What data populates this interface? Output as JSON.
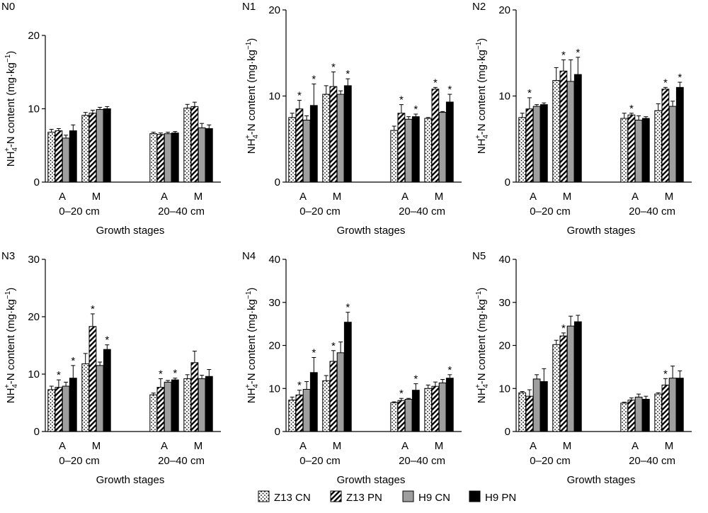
{
  "legend": [
    {
      "label": "Z13 CN",
      "pattern": "dots"
    },
    {
      "label": "Z13 PN",
      "pattern": "hatch"
    },
    {
      "label": "H9 CN",
      "pattern": "gray"
    },
    {
      "label": "H9 PN",
      "pattern": "black"
    }
  ],
  "colors": {
    "gray_bar": "#9e9e9e",
    "black_bar": "#000000",
    "outline": "#000000"
  },
  "chart_data": [
    {
      "type": "bar",
      "panel": "N0",
      "title": "N0",
      "xlabel": "Growth stages",
      "ylabel": "NH4+-N content (mg·kg−1)",
      "ylim": [
        0,
        20
      ],
      "yticks": [
        0,
        10,
        20
      ],
      "groups": [
        "0–20 cm",
        "20–40 cm"
      ],
      "categories": [
        "A",
        "M",
        "A",
        "M"
      ],
      "series": [
        {
          "name": "Z13 CN",
          "values": [
            6.8,
            9.1,
            6.6,
            10.1
          ],
          "errors": [
            0.4,
            0.4,
            0.2,
            0.5
          ]
        },
        {
          "name": "Z13 PN",
          "values": [
            7.0,
            9.4,
            6.5,
            10.3
          ],
          "errors": [
            0.3,
            0.4,
            0.2,
            0.6
          ]
        },
        {
          "name": "H9 CN",
          "values": [
            6.0,
            9.9,
            6.6,
            7.4
          ],
          "errors": [
            0.4,
            0.3,
            0.2,
            0.6
          ]
        },
        {
          "name": "H9 PN",
          "values": [
            7.0,
            10.0,
            6.7,
            7.3
          ],
          "errors": [
            0.8,
            0.3,
            0.2,
            0.5
          ]
        }
      ],
      "significant": [
        [
          false,
          false,
          false,
          false
        ],
        [
          false,
          false,
          false,
          false
        ],
        [
          false,
          false,
          false,
          false
        ],
        [
          false,
          false,
          false,
          false
        ]
      ]
    },
    {
      "type": "bar",
      "panel": "N1",
      "title": "N1",
      "xlabel": "Growth stages",
      "ylabel": "NH4+-N content (mg·kg−1)",
      "ylim": [
        0,
        20
      ],
      "yticks": [
        0,
        10,
        20
      ],
      "groups": [
        "0–20 cm",
        "20–40 cm"
      ],
      "categories": [
        "A",
        "M",
        "A",
        "M"
      ],
      "series": [
        {
          "name": "Z13 CN",
          "values": [
            7.5,
            10.2,
            6.0,
            7.4
          ],
          "errors": [
            0.5,
            1.0,
            0.5,
            0.1
          ]
        },
        {
          "name": "Z13 PN",
          "values": [
            8.5,
            11.1,
            8.0,
            10.8
          ],
          "errors": [
            1.0,
            1.7,
            1.0,
            0.2
          ]
        },
        {
          "name": "H9 CN",
          "values": [
            7.2,
            10.2,
            7.3,
            8.1
          ],
          "errors": [
            0.5,
            0.4,
            0.3,
            0.1
          ]
        },
        {
          "name": "H9 PN",
          "values": [
            8.9,
            11.2,
            7.6,
            9.3
          ],
          "errors": [
            2.5,
            0.8,
            0.3,
            0.9
          ]
        }
      ],
      "significant": [
        [
          false,
          false,
          false,
          false
        ],
        [
          true,
          true,
          true,
          true
        ],
        [
          false,
          false,
          false,
          false
        ],
        [
          true,
          true,
          true,
          true
        ]
      ]
    },
    {
      "type": "bar",
      "panel": "N2",
      "title": "N2",
      "xlabel": "Growth stages",
      "ylabel": "NH4+-N content (mg·kg−1)",
      "ylim": [
        0,
        20
      ],
      "yticks": [
        0,
        10,
        20
      ],
      "groups": [
        "0–20 cm",
        "20–40 cm"
      ],
      "categories": [
        "A",
        "M",
        "A",
        "M"
      ],
      "series": [
        {
          "name": "Z13 CN",
          "values": [
            7.5,
            11.8,
            7.4,
            8.3
          ],
          "errors": [
            0.5,
            1.5,
            0.6,
            0.8
          ]
        },
        {
          "name": "Z13 PN",
          "values": [
            8.5,
            12.9,
            7.8,
            10.8
          ],
          "errors": [
            1.3,
            1.3,
            0.2,
            0.2
          ]
        },
        {
          "name": "H9 CN",
          "values": [
            8.8,
            11.7,
            7.2,
            8.8
          ],
          "errors": [
            0.2,
            2.5,
            0.5,
            0.6
          ]
        },
        {
          "name": "H9 PN",
          "values": [
            9.0,
            12.5,
            7.4,
            11.0
          ],
          "errors": [
            0.2,
            2.0,
            0.2,
            0.6
          ]
        }
      ],
      "significant": [
        [
          false,
          false,
          false,
          false
        ],
        [
          true,
          true,
          true,
          true
        ],
        [
          false,
          false,
          false,
          false
        ],
        [
          false,
          true,
          false,
          true
        ]
      ]
    },
    {
      "type": "bar",
      "panel": "N3",
      "title": "N3",
      "xlabel": "Growth stages",
      "ylabel": "NH4+-N content (mg·kg−1)",
      "ylim": [
        0,
        30
      ],
      "yticks": [
        0,
        10,
        20,
        30
      ],
      "groups": [
        "0–20 cm",
        "20–40 cm"
      ],
      "categories": [
        "A",
        "M",
        "A",
        "M"
      ],
      "series": [
        {
          "name": "Z13 CN",
          "values": [
            7.3,
            11.8,
            6.4,
            9.2
          ],
          "errors": [
            0.6,
            1.8,
            0.3,
            0.7
          ]
        },
        {
          "name": "Z13 PN",
          "values": [
            7.7,
            18.3,
            7.7,
            12.0
          ],
          "errors": [
            1.3,
            2.2,
            1.5,
            2.0
          ]
        },
        {
          "name": "H9 CN",
          "values": [
            7.9,
            11.5,
            8.6,
            9.2
          ],
          "errors": [
            0.7,
            0.6,
            0.3,
            0.6
          ]
        },
        {
          "name": "H9 PN",
          "values": [
            9.3,
            14.3,
            9.0,
            9.6
          ],
          "errors": [
            2.2,
            0.8,
            0.3,
            1.2
          ]
        }
      ],
      "significant": [
        [
          false,
          false,
          false,
          false
        ],
        [
          true,
          true,
          true,
          false
        ],
        [
          false,
          false,
          false,
          false
        ],
        [
          true,
          true,
          true,
          false
        ]
      ]
    },
    {
      "type": "bar",
      "panel": "N4",
      "title": "N4",
      "xlabel": "Growth stages",
      "ylabel": "NH4+-N content (mg·kg−1)",
      "ylim": [
        0,
        40
      ],
      "yticks": [
        0,
        10,
        20,
        30,
        40
      ],
      "groups": [
        "0–20 cm",
        "20–40 cm"
      ],
      "categories": [
        "A",
        "M",
        "A",
        "M"
      ],
      "series": [
        {
          "name": "Z13 CN",
          "values": [
            7.3,
            11.8,
            6.7,
            10.0
          ],
          "errors": [
            0.7,
            1.2,
            0.2,
            0.8
          ]
        },
        {
          "name": "Z13 PN",
          "values": [
            8.5,
            16.3,
            7.2,
            10.5
          ],
          "errors": [
            1.1,
            2.5,
            0.5,
            1.0
          ]
        },
        {
          "name": "H9 CN",
          "values": [
            9.8,
            18.3,
            7.5,
            11.3
          ],
          "errors": [
            1.8,
            2.5,
            0.2,
            0.8
          ]
        },
        {
          "name": "H9 PN",
          "values": [
            13.7,
            25.4,
            9.6,
            12.4
          ],
          "errors": [
            3.5,
            2.3,
            1.5,
            0.8
          ]
        }
      ],
      "significant": [
        [
          false,
          false,
          false,
          false
        ],
        [
          true,
          true,
          true,
          false
        ],
        [
          false,
          false,
          false,
          false
        ],
        [
          true,
          true,
          true,
          true
        ]
      ]
    },
    {
      "type": "bar",
      "panel": "N5",
      "title": "N5",
      "xlabel": "Growth stages",
      "ylabel": "NH4+-N content (mg·kg−1)",
      "ylim": [
        0,
        40
      ],
      "yticks": [
        0,
        10,
        20,
        30,
        40
      ],
      "groups": [
        "0–20 cm",
        "20–40 cm"
      ],
      "categories": [
        "A",
        "M",
        "A",
        "M"
      ],
      "series": [
        {
          "name": "Z13 CN",
          "values": [
            9.0,
            20.2,
            6.6,
            8.7
          ],
          "errors": [
            0.3,
            1.0,
            0.2,
            0.3
          ]
        },
        {
          "name": "Z13 PN",
          "values": [
            8.2,
            22.2,
            7.3,
            10.8
          ],
          "errors": [
            1.5,
            0.7,
            0.5,
            1.5
          ]
        },
        {
          "name": "H9 CN",
          "values": [
            12.2,
            24.5,
            8.0,
            12.4
          ],
          "errors": [
            1.0,
            2.3,
            0.7,
            2.8
          ]
        },
        {
          "name": "H9 PN",
          "values": [
            11.6,
            25.5,
            7.5,
            12.4
          ],
          "errors": [
            3.0,
            1.5,
            0.7,
            1.7
          ]
        }
      ],
      "significant": [
        [
          false,
          false,
          false,
          false
        ],
        [
          false,
          true,
          false,
          true
        ],
        [
          false,
          false,
          false,
          false
        ],
        [
          false,
          false,
          false,
          false
        ]
      ]
    }
  ]
}
